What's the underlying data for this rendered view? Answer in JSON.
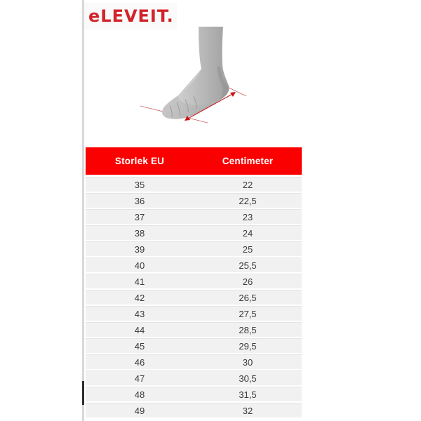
{
  "brand": {
    "logo_text": "eLEVEIT.",
    "logo_color": "#d2232a"
  },
  "figure": {
    "description": "foot-measurement-illustration",
    "foot_color_light": "#d9d9d9",
    "foot_color_dark": "#9f9f9f",
    "measure_line_color": "#c43a3a",
    "arrow_color": "#cc1111"
  },
  "table": {
    "header_bg": "#fa0000",
    "header_text_color": "#ffffff",
    "headers": [
      "Storlek EU",
      "Centimeter"
    ],
    "rows": [
      [
        "35",
        "22"
      ],
      [
        "36",
        "22,5"
      ],
      [
        "37",
        "23"
      ],
      [
        "38",
        "24"
      ],
      [
        "39",
        "25"
      ],
      [
        "40",
        "25,5"
      ],
      [
        "41",
        "26"
      ],
      [
        "42",
        "26,5"
      ],
      [
        "43",
        "27,5"
      ],
      [
        "44",
        "28,5"
      ],
      [
        "45",
        "29,5"
      ],
      [
        "46",
        "30"
      ],
      [
        "47",
        "30,5"
      ],
      [
        "48",
        "31,5"
      ],
      [
        "49",
        "32"
      ]
    ]
  }
}
